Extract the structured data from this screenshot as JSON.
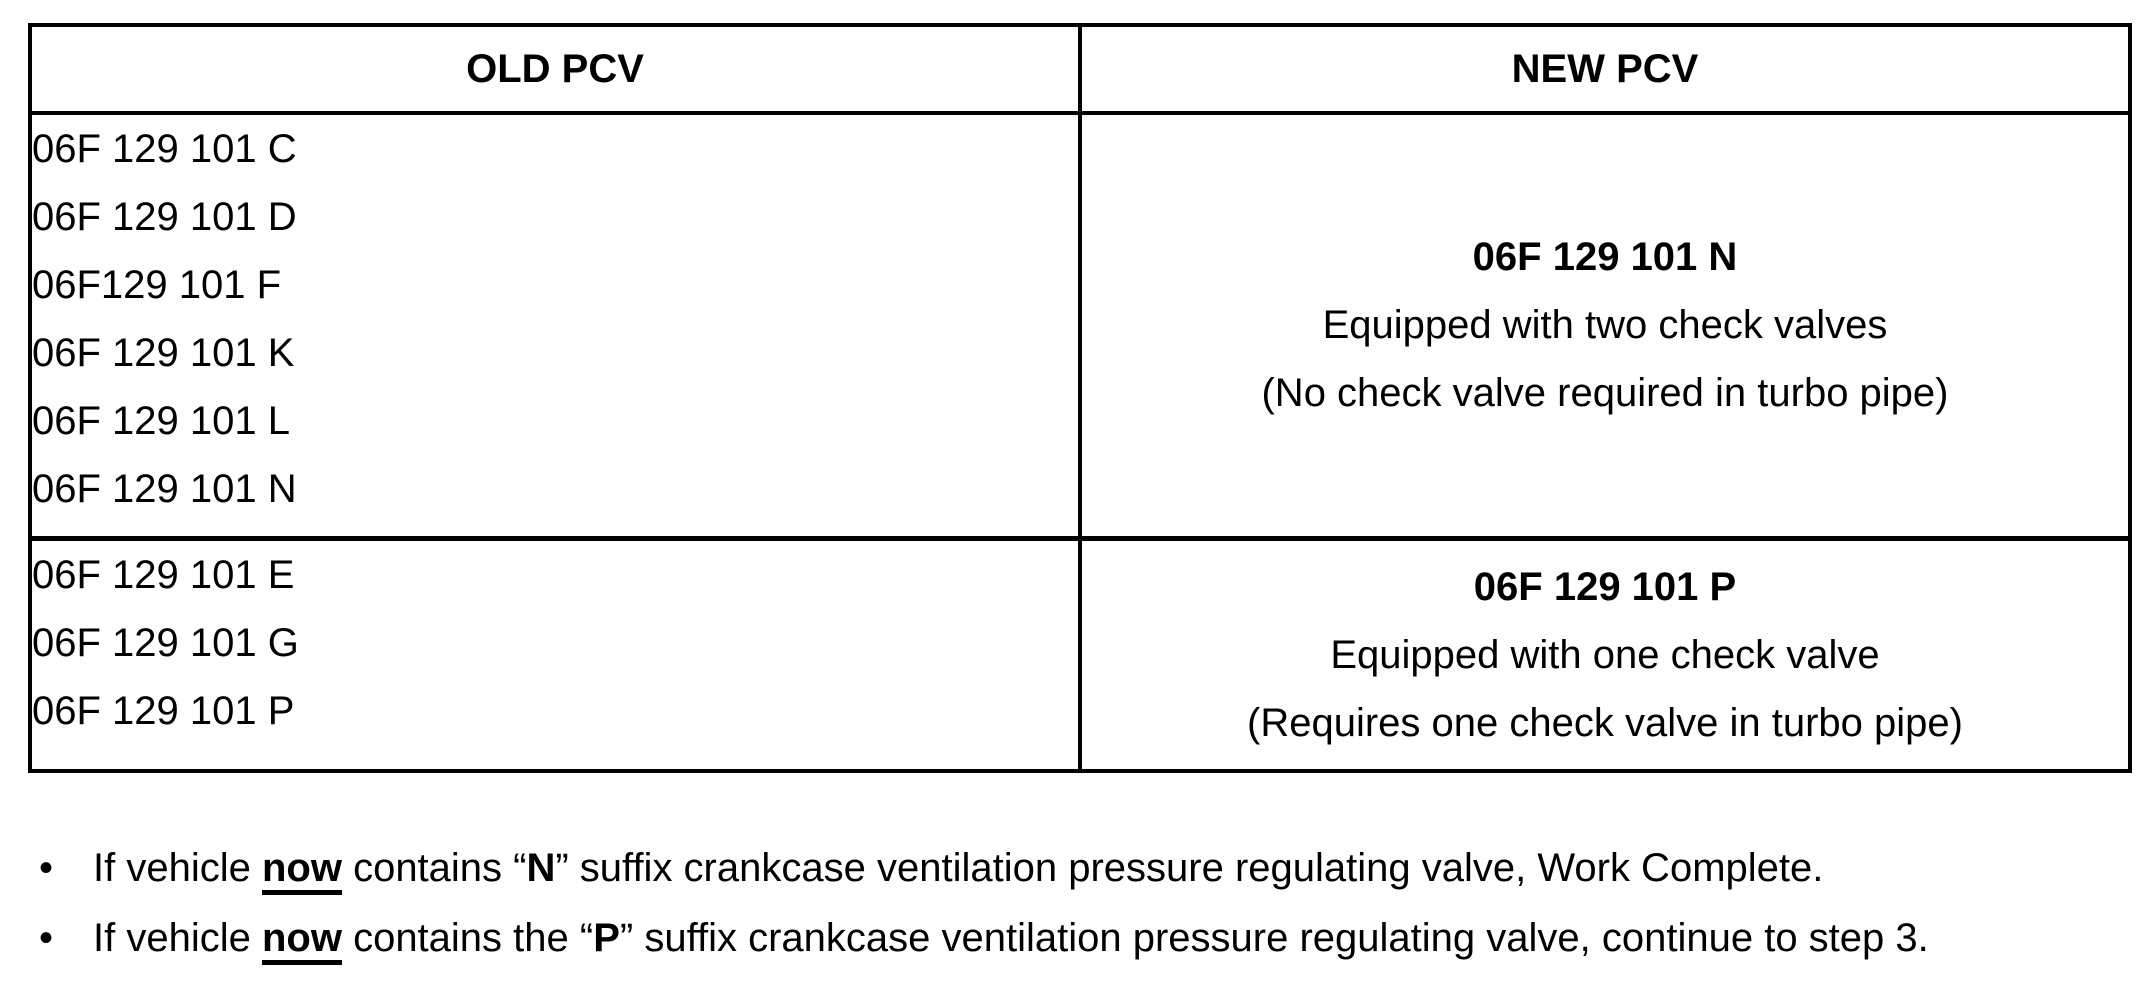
{
  "page": {
    "background_color": "#ffffff",
    "text_color": "#000000"
  },
  "table": {
    "headers": {
      "old": "OLD PCV",
      "new": "NEW PCV"
    },
    "rows": [
      {
        "old_parts": [
          "06F 129 101 C",
          "06F 129 101 D",
          "06F129 101 F",
          "06F 129 101 K",
          "06F 129 101 L",
          "06F 129 101 N"
        ],
        "new_part": "06F 129 101 N",
        "new_desc_1": "Equipped with two check valves",
        "new_desc_2": "(No check valve required in turbo pipe)"
      },
      {
        "old_parts": [
          "06F 129 101 E",
          "06F 129 101 G",
          "06F 129 101 P"
        ],
        "new_part": "06F 129 101 P",
        "new_desc_1": "Equipped with one check valve",
        "new_desc_2": "(Requires one check valve in turbo pipe)"
      }
    ]
  },
  "bullets": [
    {
      "marker": "•",
      "pre": "If vehicle ",
      "now": "now",
      "mid": " contains “",
      "suffix_letter": "N",
      "post": "” suffix crankcase ventilation pressure regulating valve, Work Complete."
    },
    {
      "marker": "•",
      "pre": "If vehicle ",
      "now": "now",
      "mid": " contains the “",
      "suffix_letter": "P",
      "post": "” suffix crankcase ventilation pressure regulating valve, continue to step 3."
    }
  ]
}
